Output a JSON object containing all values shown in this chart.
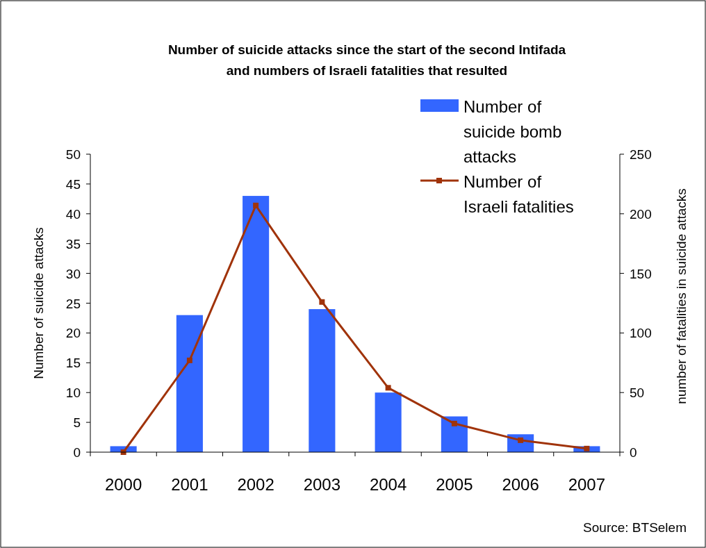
{
  "chart_data": {
    "type": "bar",
    "title": "Number of suicide attacks since the start of the second Intifada\nand numbers of Israeli fatalities that resulted",
    "ylabel": "Number of suicide attacks",
    "y2label": "number of fatalities in suicide attacks",
    "categories": [
      "2000",
      "2001",
      "2002",
      "2003",
      "2004",
      "2005",
      "2006",
      "2007"
    ],
    "series": [
      {
        "name": "Number of suicide bomb attacks",
        "color": "#3366ff",
        "values": [
          1,
          23,
          43,
          24,
          10,
          6,
          3,
          1
        ]
      },
      {
        "name": "Number of Israeli fatalities",
        "type": "line",
        "axis": "y2",
        "color": "#a0330a",
        "values": [
          0,
          77,
          207,
          126,
          54,
          24,
          10,
          3
        ]
      }
    ],
    "ylim": [
      0,
      50
    ],
    "yticks": [
      0,
      5,
      10,
      15,
      20,
      25,
      30,
      35,
      40,
      45,
      50
    ],
    "y2lim": [
      0,
      250
    ],
    "y2ticks": [
      0,
      50,
      100,
      150,
      200,
      250
    ],
    "grid": false,
    "legend": "top right",
    "marker": "square",
    "line_style": "solid",
    "annotations": [
      "Source: BTSelem"
    ]
  }
}
